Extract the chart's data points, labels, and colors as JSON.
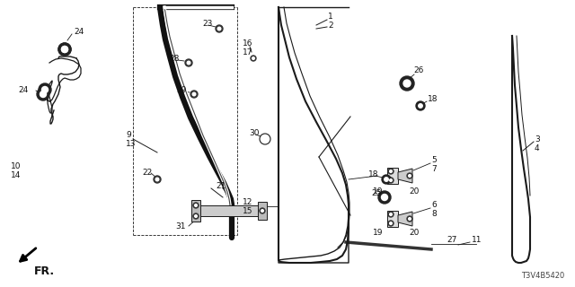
{
  "bg_color": "#ffffff",
  "diagram_code": "T3V4B5420",
  "line_color": "#1a1a1a",
  "text_color": "#111111",
  "font_size": 6.5,
  "fig_w": 6.4,
  "fig_h": 3.2
}
